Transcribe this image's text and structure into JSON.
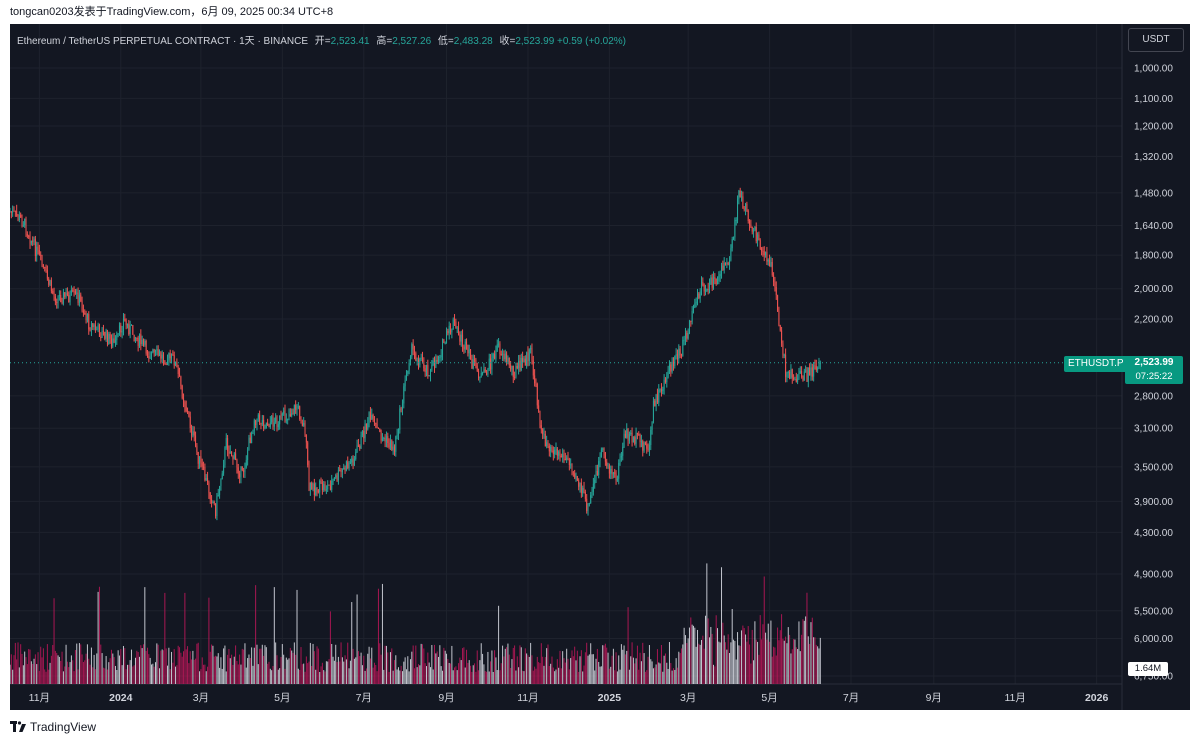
{
  "header": {
    "caption": "tongcan0203发表于TradingView.com，6月 09, 2025 00:34 UTC+8"
  },
  "legend": {
    "symbol": "Ethereum / TetherUS PERPETUAL CONTRACT · 1天 · BINANCE",
    "open_label": "开=",
    "open": "2,523.41",
    "high_label": "高=",
    "high": "2,527.26",
    "low_label": "低=",
    "low": "2,483.28",
    "close_label": "收=",
    "close": "2,523.99",
    "change": "+0.59 (+0.02%)"
  },
  "currency": "USDT",
  "last_price": {
    "symbol_tag": "ETHUSDT.P",
    "price": "2,523.99",
    "countdown": "07:25:22"
  },
  "volume_tag": "1.64M",
  "footer": {
    "brand": "TradingView",
    "logo_icon": "tradingview-logo-icon"
  },
  "colors": {
    "background": "#131722",
    "up": "#26a69a",
    "down": "#ef5350",
    "grid": "#1e222d",
    "axis_text": "#d1d4dc",
    "volume_up": "#e0e3eb",
    "volume_down": "#c2185b"
  },
  "chart_data": {
    "type": "candlestick",
    "scale": "log",
    "inverted_price_axis": true,
    "price_ticks": [
      1000,
      1100,
      1200,
      1320,
      1480,
      1640,
      1800,
      2000,
      2200,
      2800,
      3100,
      3500,
      3900,
      4300,
      4900,
      5500,
      6000,
      6750
    ],
    "price_tick_labels": [
      "1,000.00",
      "1,100.00",
      "1,200.00",
      "1,320.00",
      "1,480.00",
      "1,640.00",
      "1,800.00",
      "2,000.00",
      "2,200.00",
      "2,800.00",
      "3,100.00",
      "3,500.00",
      "3,900.00",
      "4,300.00",
      "4,900.00",
      "5,500.00",
      "6,000.00",
      "6,750.00"
    ],
    "x_labels": [
      "11月",
      "2024",
      "3月",
      "5月",
      "7月",
      "9月",
      "11月",
      "2025",
      "3月",
      "5月",
      "7月",
      "9月",
      "11月",
      "2026"
    ],
    "x_label_dates": [
      "2023-11-01",
      "2024-01-01",
      "2024-03-01",
      "2024-05-01",
      "2024-07-01",
      "2024-09-01",
      "2024-11-01",
      "2025-01-01",
      "2025-03-01",
      "2025-05-01",
      "2025-07-01",
      "2025-09-01",
      "2025-11-01",
      "2026-01-01"
    ],
    "x_range": [
      "2023-10-10",
      "2026-01-20"
    ],
    "close_series": [
      {
        "date": "2023-10-10",
        "close": 1570
      },
      {
        "date": "2023-10-20",
        "close": 1620
      },
      {
        "date": "2023-10-31",
        "close": 1800
      },
      {
        "date": "2023-11-12",
        "close": 2050
      },
      {
        "date": "2023-11-30",
        "close": 2050
      },
      {
        "date": "2023-12-08",
        "close": 2230
      },
      {
        "date": "2023-12-28",
        "close": 2380
      },
      {
        "date": "2024-01-03",
        "close": 2210
      },
      {
        "date": "2024-01-22",
        "close": 2450
      },
      {
        "date": "2024-02-10",
        "close": 2500
      },
      {
        "date": "2024-02-28",
        "close": 3400
      },
      {
        "date": "2024-03-12",
        "close": 4000
      },
      {
        "date": "2024-03-20",
        "close": 3250
      },
      {
        "date": "2024-04-01",
        "close": 3600
      },
      {
        "date": "2024-04-10",
        "close": 3000
      },
      {
        "date": "2024-04-18",
        "close": 3050
      },
      {
        "date": "2024-04-30",
        "close": 3020
      },
      {
        "date": "2024-05-12",
        "close": 2900
      },
      {
        "date": "2024-05-18",
        "close": 3110
      },
      {
        "date": "2024-05-21",
        "close": 3750
      },
      {
        "date": "2024-06-05",
        "close": 3720
      },
      {
        "date": "2024-06-24",
        "close": 3400
      },
      {
        "date": "2024-07-05",
        "close": 3000
      },
      {
        "date": "2024-07-15",
        "close": 3200
      },
      {
        "date": "2024-07-24",
        "close": 3300
      },
      {
        "date": "2024-08-05",
        "close": 2420
      },
      {
        "date": "2024-08-20",
        "close": 2600
      },
      {
        "date": "2024-09-06",
        "close": 2230
      },
      {
        "date": "2024-09-20",
        "close": 2520
      },
      {
        "date": "2024-09-28",
        "close": 2650
      },
      {
        "date": "2024-10-10",
        "close": 2400
      },
      {
        "date": "2024-10-22",
        "close": 2600
      },
      {
        "date": "2024-11-03",
        "close": 2450
      },
      {
        "date": "2024-11-12",
        "close": 3200
      },
      {
        "date": "2024-12-05",
        "close": 3500
      },
      {
        "date": "2024-12-16",
        "close": 4000
      },
      {
        "date": "2024-12-26",
        "close": 3350
      },
      {
        "date": "2025-01-06",
        "close": 3650
      },
      {
        "date": "2025-01-13",
        "close": 3150
      },
      {
        "date": "2025-01-31",
        "close": 3300
      },
      {
        "date": "2025-02-03",
        "close": 2900
      },
      {
        "date": "2025-02-12",
        "close": 2650
      },
      {
        "date": "2025-02-25",
        "close": 2400
      },
      {
        "date": "2025-03-10",
        "close": 2000
      },
      {
        "date": "2025-03-22",
        "close": 1950
      },
      {
        "date": "2025-04-01",
        "close": 1810
      },
      {
        "date": "2025-04-08",
        "close": 1500
      },
      {
        "date": "2025-04-14",
        "close": 1580
      },
      {
        "date": "2025-04-22",
        "close": 1700
      },
      {
        "date": "2025-05-01",
        "close": 1830
      },
      {
        "date": "2025-05-08",
        "close": 2200
      },
      {
        "date": "2025-05-13",
        "close": 2600
      },
      {
        "date": "2025-05-26",
        "close": 2650
      },
      {
        "date": "2025-06-08",
        "close": 2523.99
      }
    ],
    "series": [
      {
        "name": "ETHUSDT.P",
        "last": 2523.99
      }
    ]
  }
}
